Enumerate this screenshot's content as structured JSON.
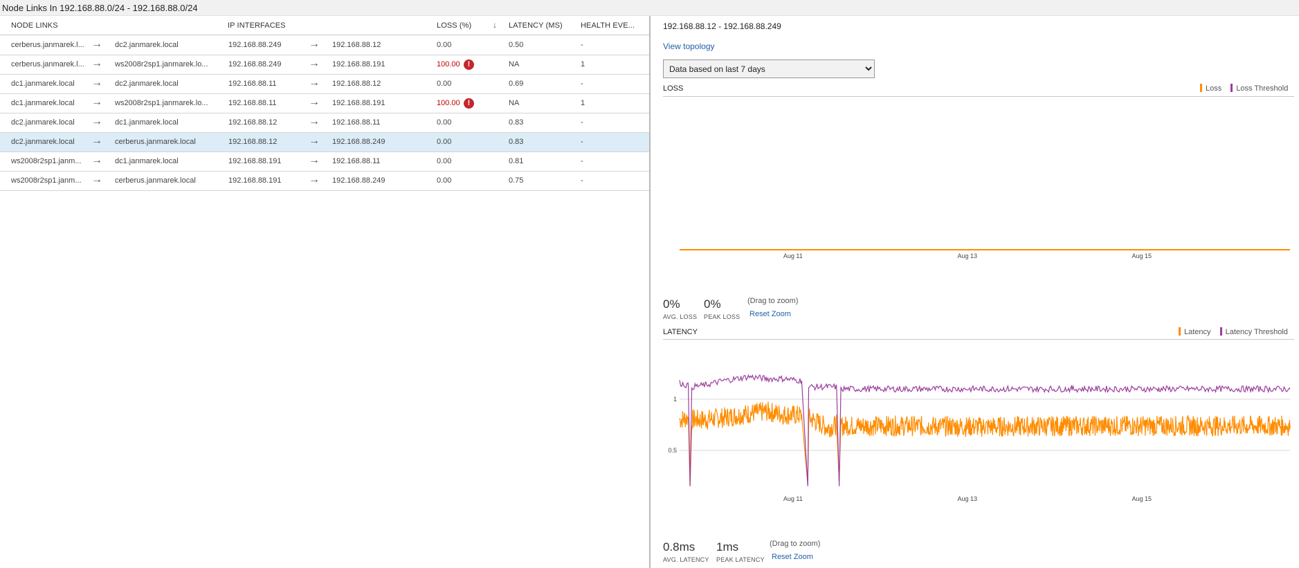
{
  "window": {
    "title": "Node Links In 192.168.88.0/24 - 192.168.88.0/24"
  },
  "table": {
    "headers": {
      "node_links": "NODE LINKS",
      "ip_interfaces": "IP INTERFACES",
      "loss": "LOSS (%)",
      "sort_icon": "↓",
      "latency": "LATENCY (MS)",
      "health": "HEALTH EVE..."
    },
    "arrow_glyph": "→",
    "error_glyph": "!",
    "rows": [
      {
        "from": "cerberus.janmarek.l...",
        "to": "dc2.janmarek.local",
        "ip_from": "192.168.88.249",
        "ip_to": "192.168.88.12",
        "loss": "0.00",
        "latency": "0.50",
        "health": "-",
        "error": false,
        "selected": false
      },
      {
        "from": "cerberus.janmarek.l...",
        "to": "ws2008r2sp1.janmarek.lo...",
        "ip_from": "192.168.88.249",
        "ip_to": "192.168.88.191",
        "loss": "100.00",
        "latency": "NA",
        "health": "1",
        "error": true,
        "selected": false
      },
      {
        "from": "dc1.janmarek.local",
        "to": "dc2.janmarek.local",
        "ip_from": "192.168.88.11",
        "ip_to": "192.168.88.12",
        "loss": "0.00",
        "latency": "0.69",
        "health": "-",
        "error": false,
        "selected": false
      },
      {
        "from": "dc1.janmarek.local",
        "to": "ws2008r2sp1.janmarek.lo...",
        "ip_from": "192.168.88.11",
        "ip_to": "192.168.88.191",
        "loss": "100.00",
        "latency": "NA",
        "health": "1",
        "error": true,
        "selected": false
      },
      {
        "from": "dc2.janmarek.local",
        "to": "dc1.janmarek.local",
        "ip_from": "192.168.88.12",
        "ip_to": "192.168.88.11",
        "loss": "0.00",
        "latency": "0.83",
        "health": "-",
        "error": false,
        "selected": false
      },
      {
        "from": "dc2.janmarek.local",
        "to": "cerberus.janmarek.local",
        "ip_from": "192.168.88.12",
        "ip_to": "192.168.88.249",
        "loss": "0.00",
        "latency": "0.83",
        "health": "-",
        "error": false,
        "selected": true
      },
      {
        "from": "ws2008r2sp1.janm...",
        "to": "dc1.janmarek.local",
        "ip_from": "192.168.88.191",
        "ip_to": "192.168.88.11",
        "loss": "0.00",
        "latency": "0.81",
        "health": "-",
        "error": false,
        "selected": false
      },
      {
        "from": "ws2008r2sp1.janm...",
        "to": "cerberus.janmarek.local",
        "ip_from": "192.168.88.191",
        "ip_to": "192.168.88.249",
        "loss": "0.00",
        "latency": "0.75",
        "health": "-",
        "error": false,
        "selected": false
      }
    ]
  },
  "detail": {
    "title": "192.168.88.12 - 192.168.88.249",
    "view_topology": "View topology",
    "range_options": [
      "Data based on last 7 days"
    ],
    "loss": {
      "label": "LOSS",
      "legend": [
        "Loss",
        "Loss Threshold"
      ],
      "avg_value": "0%",
      "avg_label": "AVG. LOSS",
      "peak_value": "0%",
      "peak_label": "PEAK LOSS",
      "hint": "(Drag to zoom)",
      "reset": "Reset Zoom"
    },
    "latency": {
      "label": "LATENCY",
      "legend": [
        "Latency",
        "Latency Threshold"
      ],
      "avg_value": "0.8ms",
      "avg_label": "AVG. LATENCY",
      "peak_value": "1ms",
      "peak_label": "PEAK LATENCY",
      "hint": "(Drag to zoom)",
      "reset": "Reset Zoom"
    }
  },
  "colors": {
    "loss": "#ff8c00",
    "threshold": "#9b3d9e",
    "selected_row": "#dcedf8",
    "error": "#c4262e",
    "link": "#1f5fa8"
  },
  "chart_data": [
    {
      "type": "line",
      "title": "LOSS",
      "legend": [
        "Loss",
        "Loss Threshold"
      ],
      "x_ticks": [
        "Aug 11",
        "Aug 13",
        "Aug 15"
      ],
      "x_range": [
        0,
        7
      ],
      "x_tick_pos": [
        1.3,
        3.3,
        5.3
      ],
      "series": [
        {
          "name": "Loss",
          "points": [
            [
              0,
              0
            ],
            [
              7,
              0
            ]
          ]
        }
      ],
      "ylim": [
        0,
        1
      ],
      "y_ticks": []
    },
    {
      "type": "line",
      "title": "LATENCY",
      "legend": [
        "Latency",
        "Latency Threshold"
      ],
      "x_ticks": [
        "Aug 11",
        "Aug 13",
        "Aug 15"
      ],
      "x_range": [
        0,
        7
      ],
      "x_tick_pos": [
        1.3,
        3.3,
        5.3
      ],
      "y_ticks": [
        0.5,
        1
      ],
      "ylim": [
        0.1,
        1.4
      ],
      "series": [
        {
          "name": "Latency",
          "approx_mean": 0.8,
          "points": [
            [
              0,
              0.8
            ],
            [
              0.1,
              0.82
            ],
            [
              0.12,
              0.15
            ],
            [
              0.14,
              0.8
            ],
            [
              0.3,
              0.8
            ],
            [
              0.5,
              0.82
            ],
            [
              0.8,
              0.86
            ],
            [
              1.0,
              0.88
            ],
            [
              1.2,
              0.85
            ],
            [
              1.4,
              0.84
            ],
            [
              1.47,
              0.17
            ],
            [
              1.48,
              0.82
            ],
            [
              1.7,
              0.72
            ],
            [
              1.8,
              0.75
            ],
            [
              1.83,
              0.2
            ],
            [
              1.85,
              0.74
            ],
            [
              2.5,
              0.74
            ],
            [
              3.5,
              0.73
            ],
            [
              4.5,
              0.74
            ],
            [
              5.5,
              0.74
            ],
            [
              6.5,
              0.74
            ],
            [
              7,
              0.74
            ]
          ]
        },
        {
          "name": "Latency Threshold",
          "points": [
            [
              0,
              1.16
            ],
            [
              0.1,
              1.13
            ],
            [
              0.12,
              0.15
            ],
            [
              0.14,
              1.12
            ],
            [
              0.3,
              1.14
            ],
            [
              0.5,
              1.18
            ],
            [
              0.8,
              1.22
            ],
            [
              1.0,
              1.2
            ],
            [
              1.2,
              1.2
            ],
            [
              1.4,
              1.18
            ],
            [
              1.47,
              0.15
            ],
            [
              1.48,
              1.12
            ],
            [
              1.7,
              1.12
            ],
            [
              1.8,
              1.12
            ],
            [
              1.83,
              0.15
            ],
            [
              1.85,
              1.1
            ],
            [
              2.5,
              1.1
            ],
            [
              3.5,
              1.1
            ],
            [
              4.5,
              1.1
            ],
            [
              5.5,
              1.1
            ],
            [
              6.5,
              1.1
            ],
            [
              7,
              1.1
            ]
          ]
        }
      ]
    }
  ]
}
